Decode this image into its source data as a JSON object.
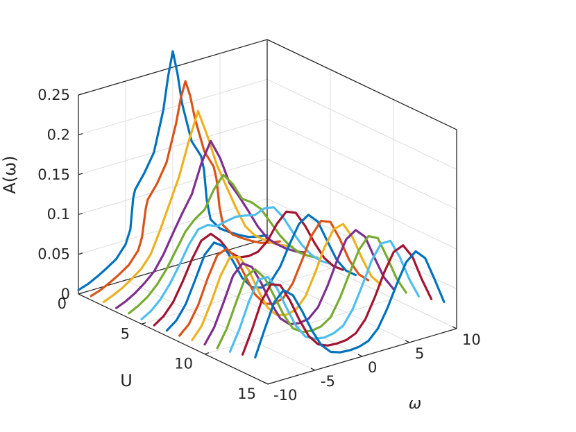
{
  "chart_data": {
    "type": "line",
    "view": "3d-waterfall",
    "zlabel": "A(ω)",
    "ylabel": "U",
    "xlabel": "ω",
    "xlim": [
      -10,
      10
    ],
    "ylim": [
      0,
      15
    ],
    "zlim": [
      0,
      0.25
    ],
    "xticks": [
      "-10",
      "-5",
      "0",
      "5",
      "10"
    ],
    "yticks": [
      "0",
      "5",
      "10",
      "15"
    ],
    "zticks": [
      "0",
      "0.05",
      "0.1",
      "0.15",
      "0.2",
      "0.25"
    ],
    "grid": true,
    "legend": "none",
    "colors": [
      "#0072BD",
      "#D95319",
      "#EDB120",
      "#7E2F8E",
      "#77AC30",
      "#4DBEEE",
      "#A2142F"
    ],
    "series": [
      {
        "u": 0,
        "x": [
          -10,
          -9,
          -8,
          -7,
          -6,
          -5,
          -4.5,
          -4.2,
          -4,
          -3,
          -2,
          -1,
          -0.5,
          0,
          0.5,
          1,
          2,
          3,
          3.3,
          3.6,
          4,
          5,
          6,
          7,
          8,
          9,
          10
        ],
        "y": [
          0.005,
          0.009,
          0.015,
          0.022,
          0.03,
          0.045,
          0.062,
          0.1,
          0.11,
          0.128,
          0.15,
          0.2,
          0.24,
          0.27,
          0.24,
          0.2,
          0.15,
          0.128,
          0.11,
          0.07,
          0.045,
          0.03,
          0.022,
          0.015,
          0.009,
          0.006,
          0.004
        ]
      },
      {
        "u": 1,
        "x": [
          -10,
          -9,
          -8,
          -7,
          -6,
          -5,
          -4.6,
          -4.2,
          -4,
          -3,
          -2,
          -1,
          -0.5,
          0,
          0.5,
          1,
          2,
          3,
          3.3,
          3.6,
          4,
          5,
          6,
          7,
          8,
          9,
          10
        ],
        "y": [
          0.005,
          0.009,
          0.015,
          0.022,
          0.03,
          0.045,
          0.06,
          0.095,
          0.105,
          0.122,
          0.145,
          0.19,
          0.22,
          0.24,
          0.22,
          0.19,
          0.145,
          0.122,
          0.105,
          0.07,
          0.045,
          0.03,
          0.022,
          0.015,
          0.009,
          0.006,
          0.004
        ]
      },
      {
        "u": 2,
        "x": [
          -10,
          -9,
          -8,
          -7,
          -6,
          -5,
          -4,
          -3,
          -2,
          -1,
          0,
          1,
          2,
          3,
          4,
          5,
          6,
          7,
          8,
          9,
          10
        ],
        "y": [
          0.005,
          0.01,
          0.016,
          0.024,
          0.033,
          0.048,
          0.075,
          0.105,
          0.135,
          0.175,
          0.21,
          0.175,
          0.135,
          0.105,
          0.075,
          0.048,
          0.033,
          0.024,
          0.016,
          0.01,
          0.005
        ]
      },
      {
        "u": 3,
        "x": [
          -10,
          -9,
          -8,
          -7,
          -6,
          -5,
          -4,
          -3,
          -2,
          -1,
          0,
          1,
          2,
          3,
          4,
          5,
          6,
          7,
          8,
          9,
          10
        ],
        "y": [
          0.005,
          0.01,
          0.017,
          0.026,
          0.037,
          0.055,
          0.078,
          0.1,
          0.12,
          0.155,
          0.18,
          0.155,
          0.12,
          0.1,
          0.078,
          0.055,
          0.037,
          0.026,
          0.017,
          0.01,
          0.005
        ]
      },
      {
        "u": 4,
        "x": [
          -10,
          -9,
          -8,
          -7,
          -6,
          -5,
          -4,
          -3,
          -2,
          -1,
          0,
          1,
          2,
          3,
          4,
          5,
          6,
          7,
          8,
          9,
          10
        ],
        "y": [
          0.006,
          0.012,
          0.02,
          0.032,
          0.048,
          0.068,
          0.088,
          0.1,
          0.108,
          0.13,
          0.145,
          0.13,
          0.108,
          0.1,
          0.088,
          0.068,
          0.048,
          0.032,
          0.02,
          0.012,
          0.006
        ]
      },
      {
        "u": 5,
        "x": [
          -10,
          -9,
          -8,
          -7,
          -6,
          -5,
          -4,
          -3,
          -2,
          -1,
          0,
          1,
          2,
          3,
          4,
          5,
          6,
          7,
          8,
          9,
          10
        ],
        "y": [
          0.006,
          0.013,
          0.024,
          0.04,
          0.06,
          0.082,
          0.098,
          0.1,
          0.095,
          0.098,
          0.1,
          0.098,
          0.095,
          0.1,
          0.098,
          0.082,
          0.06,
          0.04,
          0.024,
          0.013,
          0.006
        ]
      },
      {
        "u": 6,
        "x": [
          -10,
          -9,
          -8,
          -7,
          -6,
          -5,
          -4,
          -3,
          -2,
          -1,
          0,
          1,
          2,
          3,
          4,
          5,
          6,
          7,
          8,
          9,
          10
        ],
        "y": [
          0.006,
          0.014,
          0.028,
          0.05,
          0.075,
          0.095,
          0.1,
          0.088,
          0.07,
          0.06,
          0.058,
          0.06,
          0.07,
          0.088,
          0.1,
          0.095,
          0.075,
          0.05,
          0.028,
          0.014,
          0.006
        ]
      },
      {
        "u": 7,
        "x": [
          -10,
          -9,
          -8,
          -7,
          -6,
          -5,
          -4,
          -3,
          -2,
          -1,
          0,
          1,
          2,
          3,
          4,
          5,
          6,
          7,
          8,
          9,
          10
        ],
        "y": [
          0.007,
          0.016,
          0.033,
          0.06,
          0.088,
          0.1,
          0.092,
          0.07,
          0.045,
          0.03,
          0.026,
          0.03,
          0.045,
          0.07,
          0.092,
          0.1,
          0.088,
          0.06,
          0.033,
          0.016,
          0.007
        ]
      },
      {
        "u": 8,
        "x": [
          -10,
          -9,
          -8,
          -7,
          -6,
          -5,
          -4,
          -3,
          -2,
          -1,
          0,
          1,
          2,
          3,
          4,
          5,
          6,
          7,
          8,
          9,
          10
        ],
        "y": [
          0.008,
          0.019,
          0.04,
          0.07,
          0.095,
          0.1,
          0.085,
          0.058,
          0.032,
          0.017,
          0.013,
          0.017,
          0.032,
          0.058,
          0.085,
          0.1,
          0.095,
          0.07,
          0.04,
          0.019,
          0.008
        ]
      },
      {
        "u": 9,
        "x": [
          -10,
          -9,
          -8,
          -7,
          -6,
          -5,
          -4,
          -3,
          -2,
          -1,
          0,
          1,
          2,
          3,
          4,
          5,
          6,
          7,
          8,
          9,
          10
        ],
        "y": [
          0.01,
          0.024,
          0.05,
          0.08,
          0.1,
          0.097,
          0.077,
          0.048,
          0.023,
          0.01,
          0.007,
          0.01,
          0.023,
          0.048,
          0.077,
          0.097,
          0.1,
          0.08,
          0.05,
          0.024,
          0.01
        ]
      },
      {
        "u": 10,
        "x": [
          -10,
          -9,
          -8,
          -7,
          -6,
          -5,
          -4,
          -3,
          -2,
          -1,
          0,
          1,
          2,
          3,
          4,
          5,
          6,
          7,
          8,
          9,
          10
        ],
        "y": [
          0.012,
          0.03,
          0.058,
          0.088,
          0.1,
          0.092,
          0.068,
          0.04,
          0.017,
          0.006,
          0.004,
          0.006,
          0.017,
          0.04,
          0.068,
          0.092,
          0.1,
          0.088,
          0.058,
          0.03,
          0.012
        ]
      },
      {
        "u": 11,
        "x": [
          -10,
          -9,
          -8,
          -7,
          -6,
          -5,
          -4,
          -3,
          -2,
          -1,
          0,
          1,
          2,
          3,
          4,
          5,
          6,
          7,
          8,
          9,
          10
        ],
        "y": [
          0.015,
          0.036,
          0.066,
          0.094,
          0.1,
          0.086,
          0.06,
          0.033,
          0.012,
          0.004,
          0.002,
          0.004,
          0.012,
          0.033,
          0.06,
          0.086,
          0.1,
          0.094,
          0.066,
          0.036,
          0.015
        ]
      },
      {
        "u": 12,
        "x": [
          -10,
          -9,
          -8,
          -7,
          -6,
          -5,
          -4,
          -3,
          -2,
          -1,
          0,
          1,
          2,
          3,
          4,
          5,
          6,
          7,
          8,
          9,
          10
        ],
        "y": [
          0.018,
          0.043,
          0.074,
          0.098,
          0.098,
          0.08,
          0.052,
          0.026,
          0.009,
          0.003,
          0.001,
          0.003,
          0.009,
          0.026,
          0.052,
          0.08,
          0.098,
          0.098,
          0.074,
          0.043,
          0.018
        ]
      },
      {
        "u": 13,
        "x": [
          -10,
          -9,
          -8,
          -7,
          -6,
          -5,
          -4,
          -3,
          -2,
          -1,
          0,
          1,
          2,
          3,
          4,
          5,
          6,
          7,
          8,
          9,
          10
        ],
        "y": [
          0.022,
          0.05,
          0.082,
          0.1,
          0.095,
          0.073,
          0.045,
          0.021,
          0.007,
          0.002,
          0.001,
          0.002,
          0.007,
          0.021,
          0.045,
          0.073,
          0.095,
          0.1,
          0.082,
          0.05,
          0.022
        ]
      },
      {
        "u": 14,
        "x": [
          -10,
          -9,
          -8,
          -7,
          -6,
          -5,
          -4,
          -3,
          -2,
          -1,
          0,
          1,
          2,
          3,
          4,
          5,
          6,
          7,
          8,
          9,
          10
        ],
        "y": [
          0.026,
          0.058,
          0.088,
          0.1,
          0.09,
          0.066,
          0.039,
          0.017,
          0.005,
          0.001,
          0.0,
          0.001,
          0.005,
          0.017,
          0.039,
          0.066,
          0.09,
          0.1,
          0.088,
          0.058,
          0.026
        ]
      }
    ]
  }
}
